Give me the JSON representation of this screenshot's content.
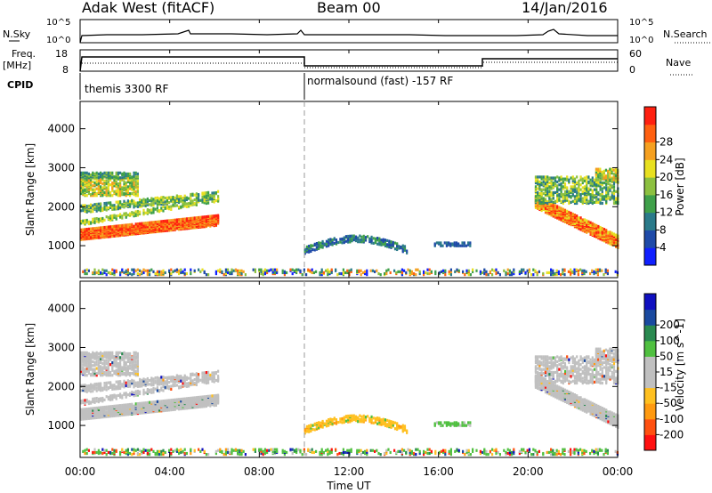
{
  "header": {
    "station": "Adak West (fitACF)",
    "beam": "Beam 00",
    "date": "14/Jan/2016"
  },
  "panels": {
    "nsky": {
      "left_label": "N.Sky",
      "right_label": "N.Search",
      "tick_hi": "10^5",
      "tick_lo": "10^0"
    },
    "freq": {
      "left_label_1": "Freq.",
      "left_label_2": "[MHz]",
      "right_label": "Nave",
      "left_ticks": [
        "18",
        "8"
      ],
      "right_ticks": [
        "60",
        "0"
      ]
    },
    "cpid": {
      "label": "CPID",
      "segments": [
        "themis 3300 RF",
        "normalsound (fast) -157 RF"
      ]
    }
  },
  "chart_data": [
    {
      "type": "heatmap",
      "name": "power-panel",
      "ylabel": "Slant Range [km]",
      "yticks": [
        "1000",
        "2000",
        "3000",
        "4000"
      ],
      "ylim": [
        180,
        4700
      ],
      "colorbar": {
        "label": "Power [dB]",
        "ticks": [
          "4",
          "8",
          "12",
          "16",
          "20",
          "24",
          "28"
        ],
        "colors": [
          "#1020ff",
          "#1e4aa8",
          "#2a7a8a",
          "#3fa04a",
          "#8cc040",
          "#e8e020",
          "#f5a020",
          "#ff6010",
          "#ff2010"
        ]
      }
    },
    {
      "type": "heatmap",
      "name": "velocity-panel",
      "ylabel": "Slant Range [km]",
      "yticks": [
        "1000",
        "2000",
        "3000",
        "4000"
      ],
      "ylim": [
        180,
        4700
      ],
      "colorbar": {
        "label": "Velocity [m s^-1]",
        "ticks": [
          "-200",
          "-100",
          "-50",
          "-15",
          "15",
          "50",
          "100",
          "200"
        ],
        "colors": [
          "#ff1010",
          "#ff5010",
          "#ff9a10",
          "#ffc020",
          "#c0c0c0",
          "#c0c0c0",
          "#50c040",
          "#2a8a50",
          "#1a4aa0",
          "#1010c0"
        ]
      }
    }
  ],
  "xaxis": {
    "label": "Time UT",
    "ticks": [
      "00:00",
      "04:00",
      "08:00",
      "12:00",
      "16:00",
      "20:00",
      "00:00"
    ]
  }
}
